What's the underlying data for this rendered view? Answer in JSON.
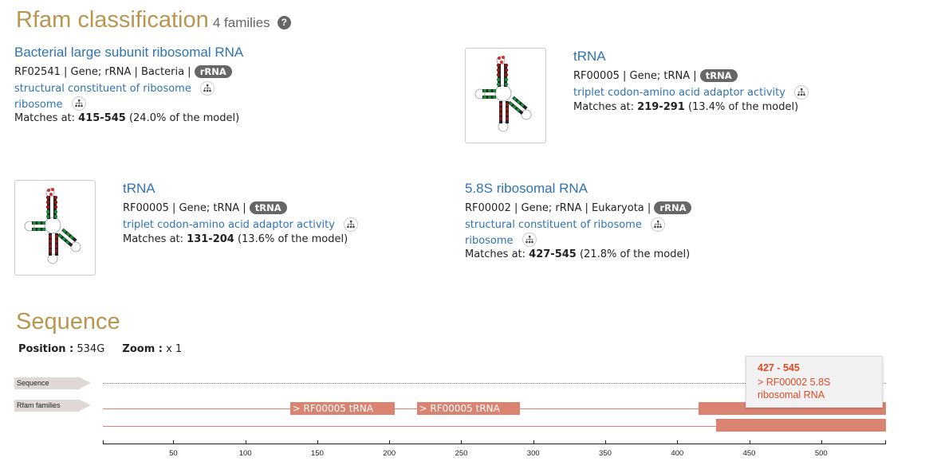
{
  "classification": {
    "heading": "Rfam classification",
    "count": "4 families",
    "help_glyph": "?",
    "families": [
      {
        "name": "Bacterial large subunit ribosomal RNA",
        "accession": "RF02541",
        "meta": "| Gene; rRNA | Bacteria |",
        "badge": "rRNA",
        "terms": [
          "structural constituent of ribosome",
          "ribosome"
        ],
        "matches_prefix": "Matches at:",
        "range": "415-545",
        "pct": "(24.0% of the model)"
      },
      {
        "name": "tRNA",
        "accession": "RF00005",
        "meta": "| Gene; tRNA |",
        "badge": "tRNA",
        "terms": [
          "triplet codon-amino acid adaptor activity"
        ],
        "matches_prefix": "Matches at:",
        "range": "219-291",
        "pct": "(13.4% of the model)"
      },
      {
        "name": "tRNA",
        "accession": "RF00005",
        "meta": "| Gene; tRNA |",
        "badge": "tRNA",
        "terms": [
          "triplet codon-amino acid adaptor activity"
        ],
        "matches_prefix": "Matches at:",
        "range": "131-204",
        "pct": "(13.6% of the model)"
      },
      {
        "name": "5.8S ribosomal RNA",
        "accession": "RF00002",
        "meta": "| Gene; rRNA | Eukaryota |",
        "badge": "rRNA",
        "terms": [
          "structural constituent of ribosome",
          "ribosome"
        ],
        "matches_prefix": "Matches at:",
        "range": "427-545",
        "pct": "(21.8% of the model)"
      }
    ]
  },
  "sequence": {
    "heading": "Sequence",
    "position_label": "Position :",
    "position_value": "534G",
    "zoom_label": "Zoom :",
    "zoom_value": "x 1",
    "tracks": {
      "sequence": "Sequence",
      "families": "Rfam families"
    },
    "features": [
      {
        "label": "> RF00005 tRNA",
        "start": 131,
        "end": 204
      },
      {
        "label": "> RF00005 tRNA",
        "start": 219,
        "end": 291
      },
      {
        "label": "",
        "start": 415,
        "end": 545
      },
      {
        "label": "",
        "start": 427,
        "end": 545
      }
    ],
    "axis": {
      "min": 1,
      "max": 545,
      "ticks": [
        "50",
        "100",
        "150",
        "200",
        "250",
        "300",
        "350",
        "400",
        "450",
        "500"
      ]
    },
    "tooltip": {
      "range": "427 - 545",
      "text": "> RF00002 5.8S ribosomal RNA"
    },
    "colors": {
      "feature": "#d98370",
      "tooltip_text": "#e24a26",
      "heading": "#b89650",
      "link": "#2f73b4"
    }
  }
}
